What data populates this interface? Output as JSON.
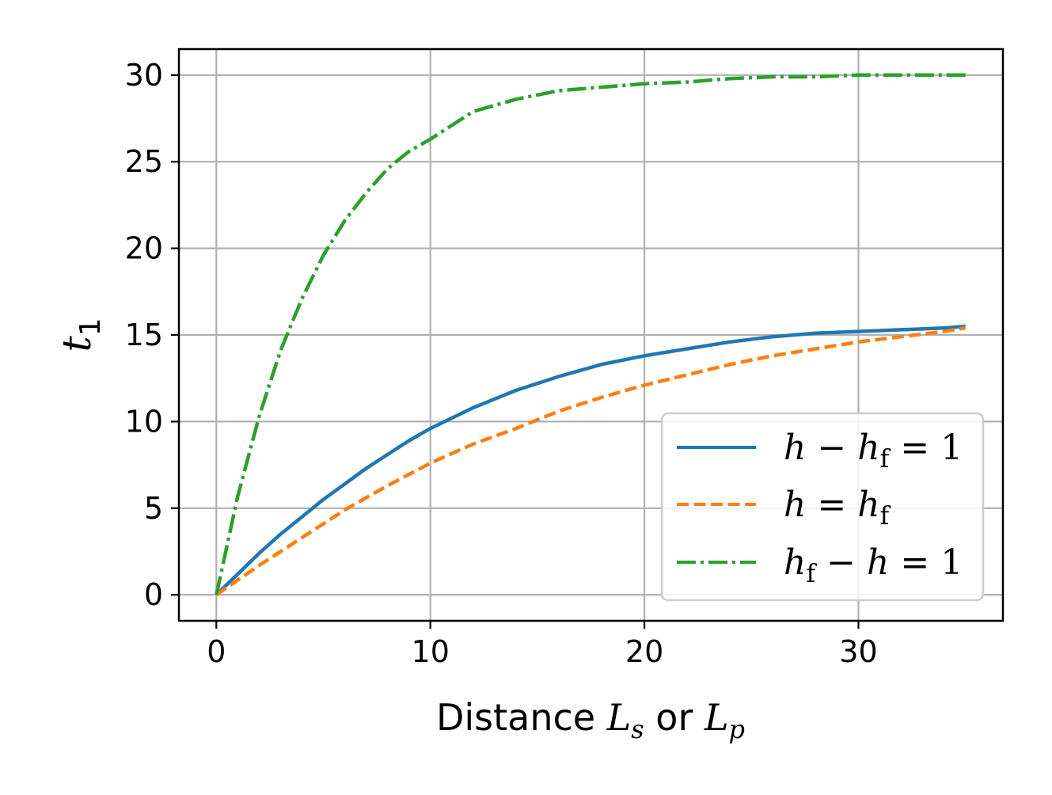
{
  "chart_data": {
    "type": "line",
    "xlabel": {
      "main": "Distance ",
      "v1": "L",
      "s1": "s",
      "mid": " or ",
      "v2": "L",
      "s2": "p"
    },
    "ylabel": {
      "main": "t",
      "sub": "1"
    },
    "xlim": [
      -1.75,
      36.75
    ],
    "ylim": [
      -1.5,
      31.5
    ],
    "xticks": [
      0,
      10,
      20,
      30
    ],
    "yticks": [
      0,
      5,
      10,
      15,
      20,
      25,
      30
    ],
    "grid": true,
    "legend_position": "lower-right",
    "series": [
      {
        "name": "h − hf = 1",
        "legend": {
          "a": "h",
          "op1": " − ",
          "b": "h",
          "bsub": "f",
          "eq": " = ",
          "c": "1"
        },
        "color": "#1f77b4",
        "dash": "solid",
        "x": [
          0,
          1,
          2,
          3,
          4,
          5,
          6,
          7,
          8,
          9,
          10,
          12,
          14,
          16,
          18,
          20,
          22,
          24,
          26,
          28,
          30,
          32,
          34,
          35
        ],
        "y": [
          0,
          1.2,
          2.4,
          3.5,
          4.5,
          5.5,
          6.4,
          7.3,
          8.1,
          8.9,
          9.6,
          10.8,
          11.8,
          12.6,
          13.3,
          13.8,
          14.2,
          14.6,
          14.9,
          15.1,
          15.2,
          15.3,
          15.4,
          15.5
        ]
      },
      {
        "name": "h = hf",
        "legend": {
          "a": "h",
          "op1": " = ",
          "b": "h",
          "bsub": "f",
          "eq": "",
          "c": ""
        },
        "color": "#ff7f0e",
        "dash": "dashed",
        "x": [
          0,
          2,
          4,
          6,
          8,
          10,
          12,
          14,
          16,
          18,
          20,
          22,
          24,
          26,
          28,
          30,
          32,
          34,
          35
        ],
        "y": [
          0,
          1.7,
          3.3,
          4.9,
          6.3,
          7.6,
          8.7,
          9.6,
          10.6,
          11.4,
          12.1,
          12.7,
          13.3,
          13.8,
          14.2,
          14.6,
          14.9,
          15.2,
          15.4
        ]
      },
      {
        "name": "hf − h = 1",
        "legend": {
          "a": "h",
          "asub": "f",
          "op1": " − ",
          "b": "h",
          "eq": " = ",
          "c": "1"
        },
        "color": "#2ca02c",
        "dash": "dashdot",
        "x": [
          0,
          1,
          2,
          3,
          4,
          5,
          6,
          7,
          8,
          9,
          10,
          12,
          14,
          16,
          18,
          20,
          22,
          24,
          26,
          28,
          30,
          32,
          35
        ],
        "y": [
          0,
          5.7,
          10.3,
          14.1,
          17.1,
          19.6,
          21.6,
          23.2,
          24.6,
          25.6,
          26.3,
          27.9,
          28.6,
          29.1,
          29.3,
          29.5,
          29.6,
          29.8,
          29.9,
          29.9,
          30.0,
          30.0,
          30.0
        ]
      }
    ]
  }
}
